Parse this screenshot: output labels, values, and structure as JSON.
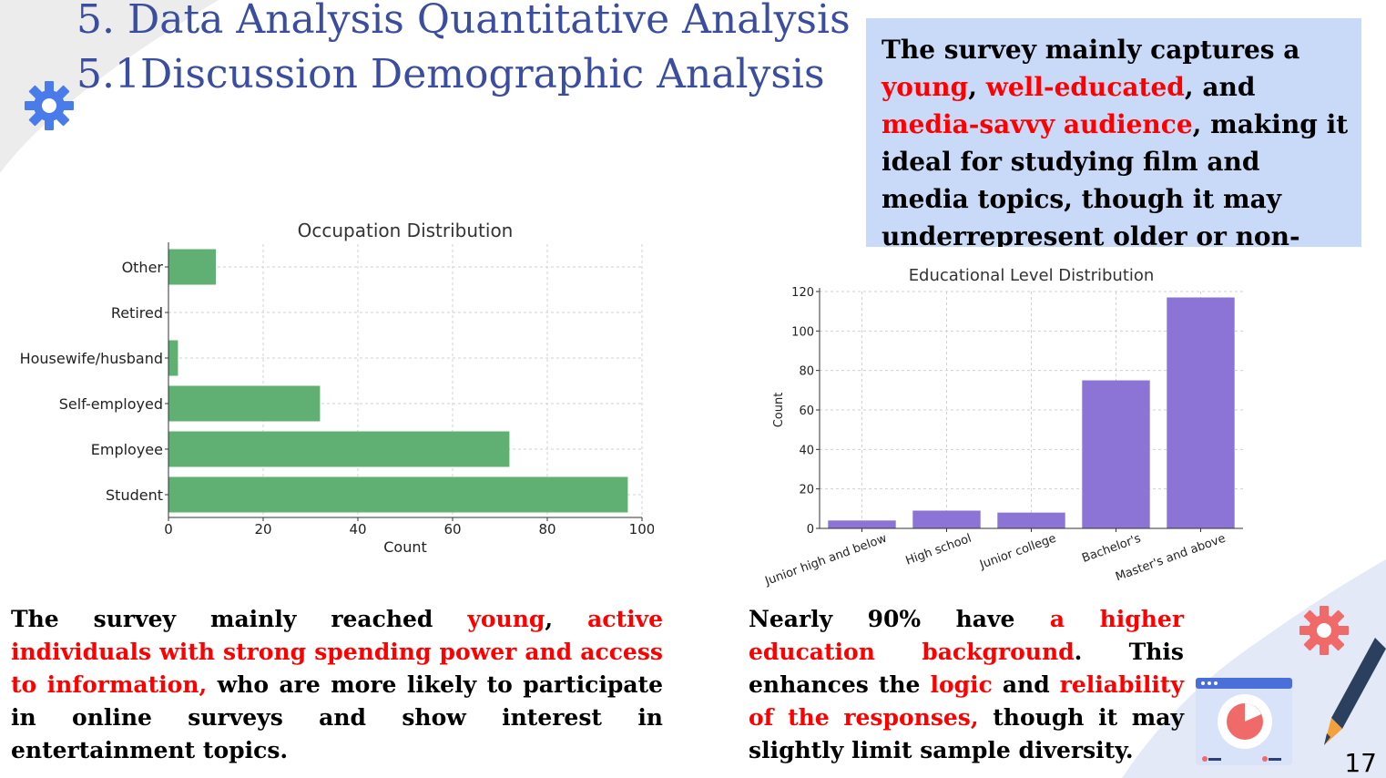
{
  "title": {
    "line1": "5. Data Analysis Quantitative Analysis",
    "line2": "5.1Discussion Demographic Analysis"
  },
  "callout": {
    "parts": [
      {
        "text": "The survey mainly captures a ",
        "emph": false
      },
      {
        "text": "young",
        "emph": true
      },
      {
        "text": ", ",
        "emph": false
      },
      {
        "text": "well-educated",
        "emph": true
      },
      {
        "text": ", and ",
        "emph": false
      },
      {
        "text": "media-savvy audience",
        "emph": true
      },
      {
        "text": ", making it ideal for studying film and media topics, though it may underrepresent older or non-student groups.",
        "emph": false
      }
    ]
  },
  "occupation_text": {
    "parts": [
      {
        "text": "The survey mainly reached ",
        "emph": false
      },
      {
        "text": "young",
        "emph": true
      },
      {
        "text": ", ",
        "emph": false
      },
      {
        "text": "active individuals with strong spending power and access to information,",
        "emph": true
      },
      {
        "text": " who are more likely to participate in online surveys and show interest in entertainment topics.",
        "emph": false
      }
    ]
  },
  "education_text": {
    "parts": [
      {
        "text": "Nearly 90% have ",
        "emph": false
      },
      {
        "text": "a higher education background",
        "emph": true
      },
      {
        "text": ". This enhances the ",
        "emph": false
      },
      {
        "text": "logic",
        "emph": true
      },
      {
        "text": " and ",
        "emph": false
      },
      {
        "text": "reliability of the responses,",
        "emph": true
      },
      {
        "text": " though it may slightly limit sample diversity.",
        "emph": false
      }
    ]
  },
  "page_number": "17",
  "colors": {
    "title": "#3a4d9f",
    "callout_bg": "#c9daf8",
    "emphasis": "#ff0000",
    "gear_blue": "#4a7bea",
    "gear_red": "#f06a6a",
    "bar_green": "#5fb072",
    "bar_purple": "#8b74d6"
  },
  "icons": [
    "gear-icon",
    "gear-icon",
    "analytics-window-icon",
    "pencil-icon"
  ],
  "chart_data": [
    {
      "type": "bar",
      "orientation": "horizontal",
      "title": "Occupation Distribution",
      "xlabel": "Count",
      "ylabel": "",
      "categories": [
        "Student",
        "Employee",
        "Self-employed",
        "Housewife/husband",
        "Retired",
        "Other"
      ],
      "values": [
        97,
        72,
        32,
        2,
        0,
        10
      ],
      "xlim": [
        0,
        100
      ],
      "xticks": [
        0,
        20,
        40,
        60,
        80,
        100
      ],
      "grid": true,
      "color": "#5fb072"
    },
    {
      "type": "bar",
      "orientation": "vertical",
      "title": "Educational Level Distribution",
      "xlabel": "",
      "ylabel": "Count",
      "categories": [
        "Junior high and below",
        "High school",
        "Junior college",
        "Bachelor's",
        "Master's and above"
      ],
      "values": [
        4,
        9,
        8,
        75,
        117
      ],
      "ylim": [
        0,
        120
      ],
      "yticks": [
        0,
        20,
        40,
        60,
        80,
        100,
        120
      ],
      "grid": true,
      "color": "#8b74d6"
    }
  ]
}
